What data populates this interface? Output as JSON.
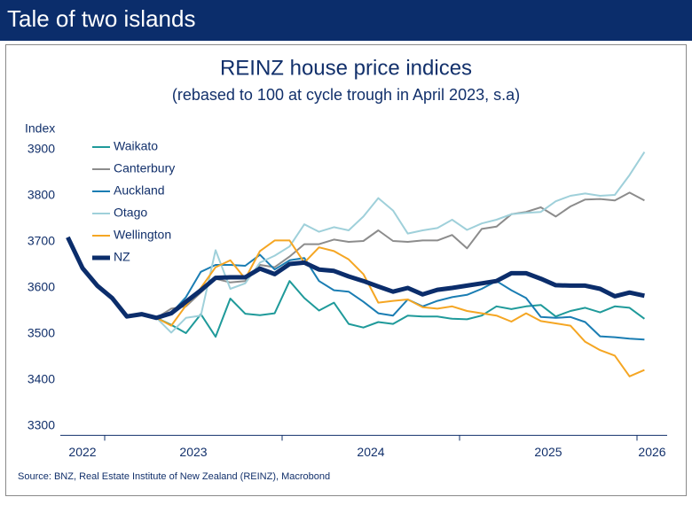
{
  "header": {
    "title": "Tale of two islands"
  },
  "chart_data": {
    "type": "line",
    "title": "REINZ house price indices",
    "subtitle": "(rebased to 100 at cycle trough in April 2023, s.a)",
    "y_label": "Index",
    "x": [
      2022.792,
      2022.875,
      2022.958,
      2023.042,
      2023.125,
      2023.208,
      2023.292,
      2023.375,
      2023.458,
      2023.542,
      2023.625,
      2023.708,
      2023.792,
      2023.875,
      2023.958,
      2024.042,
      2024.125,
      2024.208,
      2024.292,
      2024.375,
      2024.458,
      2024.542,
      2024.625,
      2024.708,
      2024.792,
      2024.875,
      2024.958,
      2025.042,
      2025.125,
      2025.208,
      2025.292,
      2025.375,
      2025.458,
      2025.542,
      2025.625,
      2025.708,
      2025.792,
      2025.875,
      2025.958,
      2026.042
    ],
    "xlim": [
      2022.75,
      2026.17
    ],
    "xticks": [
      2023,
      2024,
      2025,
      2026
    ],
    "xlabels": [
      2022,
      2023,
      2024,
      2025,
      2026
    ],
    "ylim": [
      3280,
      3920
    ],
    "yticks": [
      3300,
      3400,
      3500,
      3600,
      3700,
      3800,
      3900
    ],
    "legend": "top-left",
    "series": [
      {
        "name": "Waikato",
        "color": "#1f9a9a",
        "width": 2,
        "values": [
          null,
          null,
          null,
          null,
          null,
          null,
          3535,
          3520,
          3502,
          3543,
          3494,
          3577,
          3544,
          3541,
          3545,
          3615,
          3578,
          3551,
          3568,
          3522,
          3514,
          3526,
          3522,
          3540,
          3538,
          3538,
          3533,
          3532,
          3540,
          3560,
          3554,
          3560,
          3563,
          3538,
          3550,
          3557,
          3547,
          3560,
          3557,
          3533
        ]
      },
      {
        "name": "Canterbury",
        "color": "#8c8c8c",
        "width": 2,
        "values": [
          null,
          null,
          null,
          null,
          null,
          null,
          3535,
          3555,
          3560,
          3590,
          3620,
          3612,
          3615,
          3650,
          3645,
          3668,
          3695,
          3695,
          3705,
          3700,
          3702,
          3725,
          3702,
          3700,
          3703,
          3703,
          3715,
          3686,
          3728,
          3733,
          3760,
          3765,
          3775,
          3755,
          3777,
          3792,
          3793,
          3790,
          3807,
          3790
        ]
      },
      {
        "name": "Auckland",
        "color": "#1a7db3",
        "width": 2,
        "values": [
          null,
          null,
          null,
          null,
          null,
          null,
          3535,
          3545,
          3580,
          3635,
          3650,
          3650,
          3648,
          3672,
          3640,
          3660,
          3665,
          3615,
          3595,
          3592,
          3570,
          3545,
          3540,
          3575,
          3560,
          3572,
          3580,
          3585,
          3598,
          3615,
          3595,
          3578,
          3537,
          3535,
          3537,
          3526,
          3495,
          3493,
          3490,
          3488
        ]
      },
      {
        "name": "Otago",
        "color": "#9fd0da",
        "width": 2,
        "values": [
          null,
          null,
          null,
          null,
          null,
          null,
          3535,
          3503,
          3535,
          3540,
          3682,
          3598,
          3610,
          3655,
          3670,
          3690,
          3738,
          3722,
          3732,
          3725,
          3755,
          3795,
          3768,
          3718,
          3725,
          3730,
          3748,
          3726,
          3740,
          3748,
          3760,
          3763,
          3765,
          3788,
          3800,
          3805,
          3800,
          3802,
          3845,
          3895
        ]
      },
      {
        "name": "Wellington",
        "color": "#f5a623",
        "width": 2,
        "values": [
          null,
          null,
          null,
          null,
          null,
          null,
          3535,
          3518,
          3562,
          3600,
          3645,
          3660,
          3620,
          3680,
          3703,
          3703,
          3655,
          3688,
          3680,
          3662,
          3630,
          3568,
          3572,
          3575,
          3558,
          3555,
          3560,
          3550,
          3545,
          3540,
          3527,
          3545,
          3528,
          3523,
          3518,
          3483,
          3465,
          3453,
          3408,
          3422
        ]
      },
      {
        "name": "NZ",
        "color": "#0b2d6b",
        "width": 5,
        "values": [
          3710,
          3643,
          3605,
          3578,
          3538,
          3543,
          3535,
          3545,
          3570,
          3595,
          3622,
          3623,
          3623,
          3642,
          3630,
          3652,
          3655,
          3640,
          3637,
          3625,
          3615,
          3603,
          3592,
          3600,
          3586,
          3596,
          3600,
          3605,
          3610,
          3615,
          3632,
          3632,
          3620,
          3606,
          3605,
          3605,
          3598,
          3582,
          3590,
          3583
        ]
      }
    ]
  },
  "source": "Source: BNZ, Real Estate Institute of New Zealand (REINZ), Macrobond"
}
